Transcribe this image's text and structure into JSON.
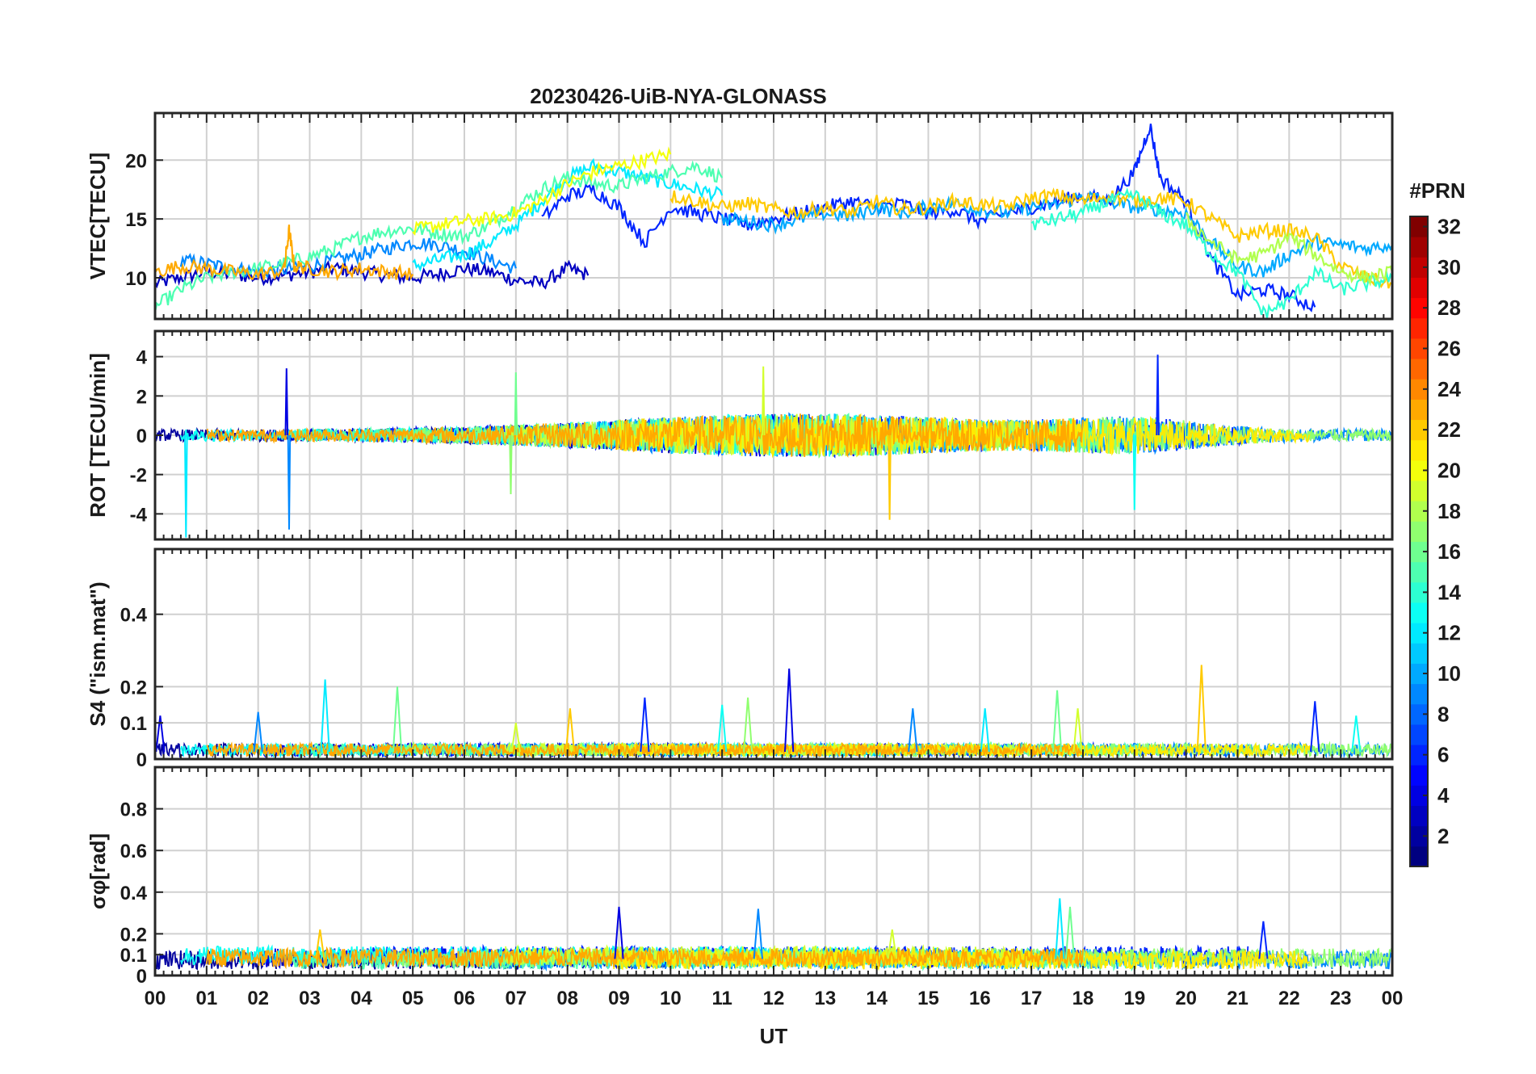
{
  "chart_data": {
    "type": "line",
    "title": "20230426-UiB-NYA-GLONASS",
    "xlabel": "UT",
    "x_ticks": [
      "00",
      "01",
      "02",
      "03",
      "04",
      "05",
      "06",
      "07",
      "08",
      "09",
      "10",
      "11",
      "12",
      "13",
      "14",
      "15",
      "16",
      "17",
      "18",
      "19",
      "20",
      "21",
      "22",
      "23",
      "00"
    ],
    "xlim": [
      0,
      24
    ],
    "grid": true,
    "colormap": "jet",
    "colorbar": {
      "label": "#PRN",
      "range": [
        1,
        32
      ],
      "ticks": [
        "2",
        "4",
        "6",
        "8",
        "10",
        "12",
        "14",
        "16",
        "18",
        "20",
        "22",
        "24",
        "26",
        "28",
        "30",
        "32"
      ],
      "placement": "right"
    },
    "panels": [
      {
        "name": "vtec",
        "ylabel": "VTEC[TECU]",
        "ylim": [
          6.5,
          24
        ],
        "yticks": [
          "10",
          "15",
          "20"
        ],
        "series": [
          {
            "prn": 3,
            "x": [
              0,
              0.5,
              1,
              1.5,
              2,
              2.5,
              3,
              3.5,
              4,
              4.5,
              5,
              5.5,
              6,
              6.5,
              7,
              7.5,
              8,
              8.4
            ],
            "y": [
              9.5,
              10,
              10.5,
              10.3,
              10,
              10.2,
              10.5,
              10.8,
              10.5,
              10.2,
              10,
              10.3,
              10.8,
              10.5,
              9.8,
              9.5,
              10.8,
              10.2
            ]
          },
          {
            "prn": 9,
            "x": [
              0.5,
              1,
              1.5,
              2,
              2.5,
              3,
              3.5,
              4,
              4.5,
              5,
              5.5,
              6,
              6.5,
              7
            ],
            "y": [
              11.5,
              11.2,
              10.8,
              10.5,
              10.7,
              11,
              11.5,
              12,
              12.5,
              13,
              12.8,
              12.3,
              11.5,
              10.8
            ]
          },
          {
            "prn": 12,
            "x": [
              5,
              5.5,
              6,
              6.5,
              7,
              7.5,
              8,
              8.5,
              9,
              9.5,
              10,
              10.5,
              11
            ],
            "y": [
              11,
              11.5,
              12,
              13,
              14.5,
              16.5,
              18.5,
              19.5,
              19,
              18.5,
              18,
              17.5,
              17
            ]
          },
          {
            "prn": 15,
            "x": [
              0,
              0.5,
              1,
              1.5,
              2,
              2.5,
              3,
              3.5,
              4,
              4.5,
              5,
              5.5,
              6,
              6.5,
              7,
              7.5,
              8,
              8.5,
              9,
              9.5,
              10,
              10.5,
              11
            ],
            "y": [
              7.5,
              9,
              10,
              10.5,
              10.8,
              11.2,
              11.8,
              12.5,
              13.5,
              14,
              14.2,
              13.8,
              13.5,
              14.5,
              16,
              17.5,
              18.5,
              18,
              17.8,
              18.5,
              19,
              19.5,
              18.5
            ]
          },
          {
            "prn": 20,
            "x": [
              5,
              5.5,
              6,
              6.5,
              7,
              7.5,
              8,
              8.5,
              9,
              9.5,
              10
            ],
            "y": [
              14,
              14.5,
              14.8,
              15,
              15.5,
              16.5,
              18,
              19,
              19.5,
              20,
              20.5
            ]
          },
          {
            "prn": 23,
            "x": [
              0,
              0.5,
              1,
              1.5,
              2,
              2.5,
              2.6,
              2.7,
              3,
              3.5,
              4,
              4.5,
              5
            ],
            "y": [
              10.5,
              11,
              10.8,
              10.5,
              10.3,
              10.6,
              14,
              11,
              10.8,
              10.5,
              10.8,
              10.5,
              10.3
            ]
          },
          {
            "prn": 6,
            "x": [
              7.5,
              8,
              8.5,
              9,
              9.5,
              10,
              10.5,
              11,
              11.5,
              12,
              12.5,
              13,
              13.5,
              14,
              14.5,
              15,
              15.5,
              16,
              16.5,
              17,
              17.5,
              18,
              18.5,
              19,
              19.3,
              19.5,
              20,
              20.5,
              21,
              21.5,
              22,
              22.5
            ],
            "y": [
              15,
              17,
              17.5,
              16,
              13,
              16,
              15.5,
              15,
              14.5,
              15,
              15.5,
              16,
              16.5,
              16,
              16.3,
              15.5,
              15.8,
              14.8,
              15.5,
              16,
              16.5,
              17,
              16.5,
              19,
              23,
              18.5,
              16.5,
              11.5,
              8.5,
              9,
              8.5,
              7.5
            ]
          },
          {
            "prn": 10,
            "x": [
              11,
              11.5,
              12,
              12.5,
              13,
              13.5,
              14,
              14.5,
              15,
              15.5,
              16,
              16.5,
              17,
              17.5,
              18,
              18.5,
              19,
              19.5,
              20,
              20.5,
              21,
              21.5,
              22,
              22.5,
              23,
              23.5,
              24
            ],
            "y": [
              15,
              14.8,
              14.5,
              15,
              15.5,
              15.2,
              16,
              15.5,
              16,
              16.3,
              15.8,
              15.5,
              16,
              16.2,
              17,
              16.5,
              16,
              15.8,
              15.5,
              13,
              11,
              10.5,
              12,
              13,
              12.8,
              12.5,
              12.8
            ]
          },
          {
            "prn": 22,
            "x": [
              10,
              10.5,
              11,
              11.5,
              12,
              12.5,
              13,
              13.5,
              14,
              14.5,
              15,
              15.5,
              16,
              16.5,
              17,
              17.5,
              18,
              18.5,
              19,
              19.5,
              20,
              20.5,
              21,
              21.5,
              22,
              22.5,
              23,
              23.5,
              24
            ],
            "y": [
              17,
              16.5,
              16,
              16.3,
              15.8,
              15.5,
              16,
              15.5,
              16.5,
              15.8,
              16,
              16.5,
              16.2,
              16,
              16.8,
              17,
              16.5,
              17,
              16.5,
              16.8,
              16.5,
              15,
              13.5,
              14,
              14,
              13.5,
              11,
              10,
              9.5
            ]
          },
          {
            "prn": 14,
            "x": [
              17,
              17.5,
              18,
              18.5,
              19,
              19.5,
              20,
              20.5,
              21,
              21.5,
              22,
              22.5,
              23,
              23.5,
              24
            ],
            "y": [
              14.5,
              15,
              15.5,
              16.5,
              17,
              15.5,
              14.5,
              12,
              10.5,
              7,
              8,
              10.5,
              9,
              9.5,
              10
            ]
          },
          {
            "prn": 18,
            "x": [
              20,
              20.5,
              21,
              21.5,
              22,
              22.5,
              23,
              23.5,
              24
            ],
            "y": [
              15,
              13,
              11.5,
              12,
              13.5,
              12,
              10.5,
              10,
              10.5
            ]
          }
        ]
      },
      {
        "name": "rot",
        "ylabel": "ROT [TECU/min]",
        "ylim": [
          -5.3,
          5.3
        ],
        "yticks": [
          "-4",
          "-2",
          "0",
          "2",
          "4"
        ],
        "spikes": [
          {
            "x": 2.55,
            "y": 3.4
          },
          {
            "x": 2.6,
            "y": -4.8
          },
          {
            "x": 0.6,
            "y": -5.2
          },
          {
            "x": 7.0,
            "y": 3.2
          },
          {
            "x": 11.8,
            "y": 3.5
          },
          {
            "x": 14.25,
            "y": -4.3
          },
          {
            "x": 19.45,
            "y": 4.1
          },
          {
            "x": 19.0,
            "y": -3.8
          },
          {
            "x": 6.9,
            "y": -3.0
          }
        ]
      },
      {
        "name": "s4",
        "ylabel": "S4 (\"ism.mat\")",
        "ylim": [
          0,
          0.58
        ],
        "yticks": [
          "0",
          "0.1",
          "0.2",
          "0.4"
        ],
        "peaks": [
          {
            "x": 0.1,
            "y": 0.12
          },
          {
            "x": 2.0,
            "y": 0.13
          },
          {
            "x": 3.3,
            "y": 0.22
          },
          {
            "x": 4.7,
            "y": 0.2
          },
          {
            "x": 7.0,
            "y": 0.1
          },
          {
            "x": 8.05,
            "y": 0.14
          },
          {
            "x": 9.5,
            "y": 0.17
          },
          {
            "x": 11.0,
            "y": 0.15
          },
          {
            "x": 11.5,
            "y": 0.17
          },
          {
            "x": 12.3,
            "y": 0.25
          },
          {
            "x": 14.7,
            "y": 0.14
          },
          {
            "x": 16.1,
            "y": 0.14
          },
          {
            "x": 17.5,
            "y": 0.19
          },
          {
            "x": 17.9,
            "y": 0.14
          },
          {
            "x": 20.3,
            "y": 0.26
          },
          {
            "x": 22.5,
            "y": 0.16
          },
          {
            "x": 23.3,
            "y": 0.12
          }
        ]
      },
      {
        "name": "sigma_phi",
        "ylabel": "σφ[rad]",
        "ylim": [
          0,
          1
        ],
        "yticks": [
          "0",
          "0.1",
          "0.2",
          "0.4",
          "0.6",
          "0.8"
        ],
        "peaks": [
          {
            "x": 9.0,
            "y": 0.33
          },
          {
            "x": 11.7,
            "y": 0.32
          },
          {
            "x": 17.55,
            "y": 0.37
          },
          {
            "x": 17.75,
            "y": 0.33
          },
          {
            "x": 14.3,
            "y": 0.22
          },
          {
            "x": 3.2,
            "y": 0.22
          },
          {
            "x": 21.5,
            "y": 0.26
          }
        ]
      }
    ]
  }
}
